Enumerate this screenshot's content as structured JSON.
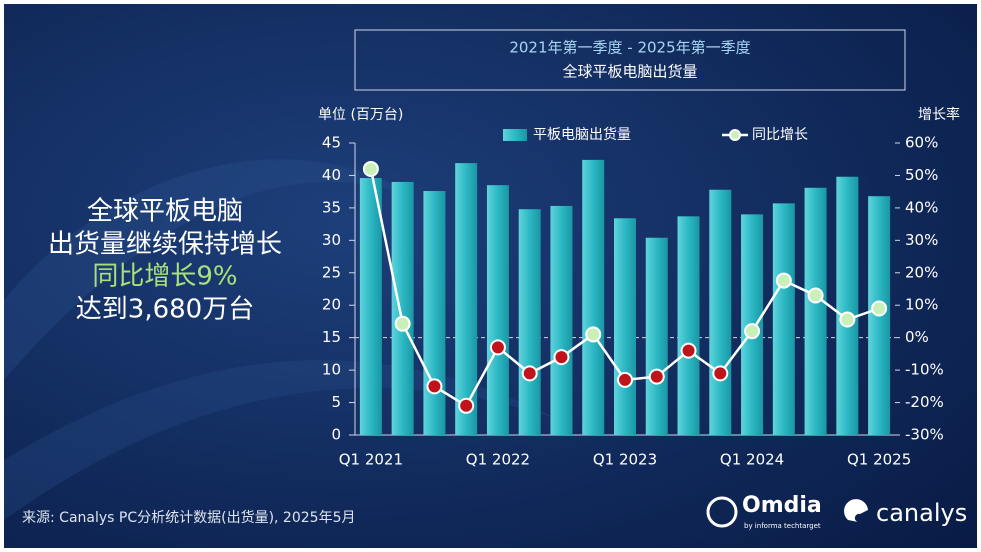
{
  "chart_data": {
    "type": "combo",
    "title": "2021年第一季度 - 2025年第一季度",
    "subtitle": "全球平板电脑出货量",
    "y_label": "单位 (百万台)",
    "y2_label": "增长率",
    "categories": [
      "Q1 2021",
      null,
      null,
      null,
      "Q1 2022",
      null,
      null,
      null,
      "Q1 2023",
      null,
      null,
      null,
      "Q1 2024",
      null,
      null,
      null,
      "Q1 2025"
    ],
    "series": [
      {
        "name": "平板电脑出货量",
        "type": "bar",
        "axis": "y",
        "color": "#2cb8c4",
        "values": [
          39.6,
          39.0,
          37.6,
          41.9,
          38.5,
          34.8,
          35.3,
          42.4,
          33.4,
          30.4,
          33.7,
          37.8,
          34.0,
          35.7,
          38.1,
          39.8,
          36.8
        ]
      },
      {
        "name": "同比增长",
        "type": "line",
        "axis": "y2",
        "color": "#ffffff",
        "positive_color": "#c9f0b8",
        "negative_color": "#c0141c",
        "values": [
          52,
          4.3,
          -15,
          -21,
          -3,
          -11,
          -6,
          1,
          -13,
          -12,
          -4,
          -11,
          2,
          17.6,
          13,
          5.6,
          9
        ]
      }
    ],
    "ylim": [
      0,
      45
    ],
    "yticks": [
      0,
      5,
      10,
      15,
      20,
      25,
      30,
      35,
      40,
      45
    ],
    "y2lim": [
      -30,
      60
    ],
    "y2ticks": [
      {
        "value": -30,
        "label": "-30%"
      },
      {
        "value": -20,
        "label": "-20%"
      },
      {
        "value": -10,
        "label": "-10%"
      },
      {
        "value": 0,
        "label": "0%"
      },
      {
        "value": 10,
        "label": "10%"
      },
      {
        "value": 20,
        "label": "20%"
      },
      {
        "value": 30,
        "label": "30%"
      },
      {
        "value": 40,
        "label": "40%"
      },
      {
        "value": 50,
        "label": "50%"
      },
      {
        "value": 60,
        "label": "60%"
      }
    ],
    "zero_line": true,
    "grid": false,
    "legend": "top"
  },
  "annotation": [
    "全球平板电脑",
    "出货量继续保持增长",
    "同比增长9%",
    "达到3,680万台"
  ],
  "source": "来源: Canalys PC分析统计数据(出货量), 2025年5月",
  "logos": [
    "Omdia",
    "by informa techtarget",
    "canalys"
  ]
}
